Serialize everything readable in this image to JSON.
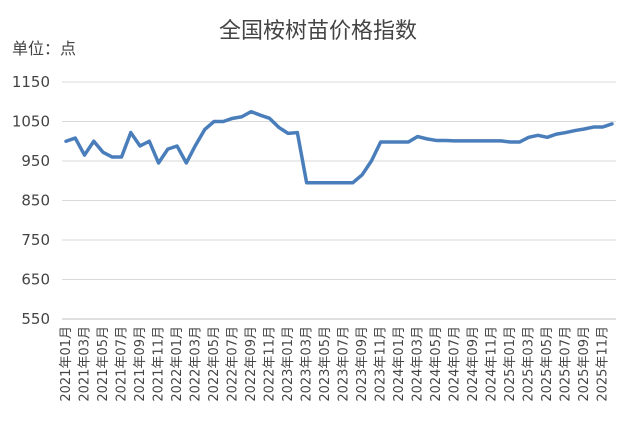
{
  "chart_data": {
    "type": "line",
    "title": "全国桉树苗价格指数",
    "ylabel": "单位：点",
    "xlabel": "",
    "ylim": [
      550,
      1150
    ],
    "yticks": [
      550,
      650,
      750,
      850,
      950,
      1050,
      1150
    ],
    "grid": true,
    "legend": "none",
    "line_color": "#4a7ebb",
    "x_tick_labels": [
      "2021年01月",
      "2021年03月",
      "2021年05月",
      "2021年07月",
      "2021年09月",
      "2021年11月",
      "2022年01月",
      "2022年03月",
      "2022年05月",
      "2022年07月",
      "2022年09月",
      "2022年11月",
      "2023年01月",
      "2023年03月",
      "2023年05月",
      "2023年07月",
      "2023年09月",
      "2023年11月",
      "2024年01月",
      "2024年03月",
      "2024年05月",
      "2024年07月",
      "2024年09月",
      "2024年11月",
      "2025年01月",
      "2025年03月",
      "2025年05月",
      "2025年07月",
      "2025年09月",
      "2025年11月"
    ],
    "x": [
      "2021-01",
      "2021-02",
      "2021-03",
      "2021-04",
      "2021-05",
      "2021-06",
      "2021-07",
      "2021-08",
      "2021-09",
      "2021-10",
      "2021-11",
      "2021-12",
      "2022-01",
      "2022-02",
      "2022-03",
      "2022-04",
      "2022-05",
      "2022-06",
      "2022-07",
      "2022-08",
      "2022-09",
      "2022-10",
      "2022-11",
      "2022-12",
      "2023-01",
      "2023-02",
      "2023-03",
      "2023-04",
      "2023-05",
      "2023-06",
      "2023-07",
      "2023-08",
      "2023-09",
      "2023-10",
      "2023-11",
      "2023-12",
      "2024-01",
      "2024-02",
      "2024-03",
      "2024-04",
      "2024-05",
      "2024-06",
      "2024-07",
      "2024-08",
      "2024-09",
      "2024-10",
      "2024-11",
      "2024-12",
      "2025-01",
      "2025-02",
      "2025-03",
      "2025-04",
      "2025-05",
      "2025-06",
      "2025-07",
      "2025-08",
      "2025-09",
      "2025-10",
      "2025-11",
      "2025-12"
    ],
    "series": [
      {
        "values": [
          1000,
          1008,
          965,
          1000,
          972,
          960,
          960,
          1022,
          988,
          1000,
          945,
          980,
          988,
          945,
          990,
          1030,
          1050,
          1050,
          1058,
          1062,
          1075,
          1066,
          1058,
          1035,
          1020,
          1022,
          895,
          895,
          895,
          895,
          895,
          895,
          915,
          950,
          998,
          998,
          998,
          998,
          1012,
          1006,
          1002,
          1002,
          1001,
          1001,
          1001,
          1001,
          1001,
          1001,
          998,
          998,
          1010,
          1015,
          1010,
          1018,
          1022,
          1027,
          1031,
          1036,
          1036,
          1044
        ]
      }
    ]
  }
}
